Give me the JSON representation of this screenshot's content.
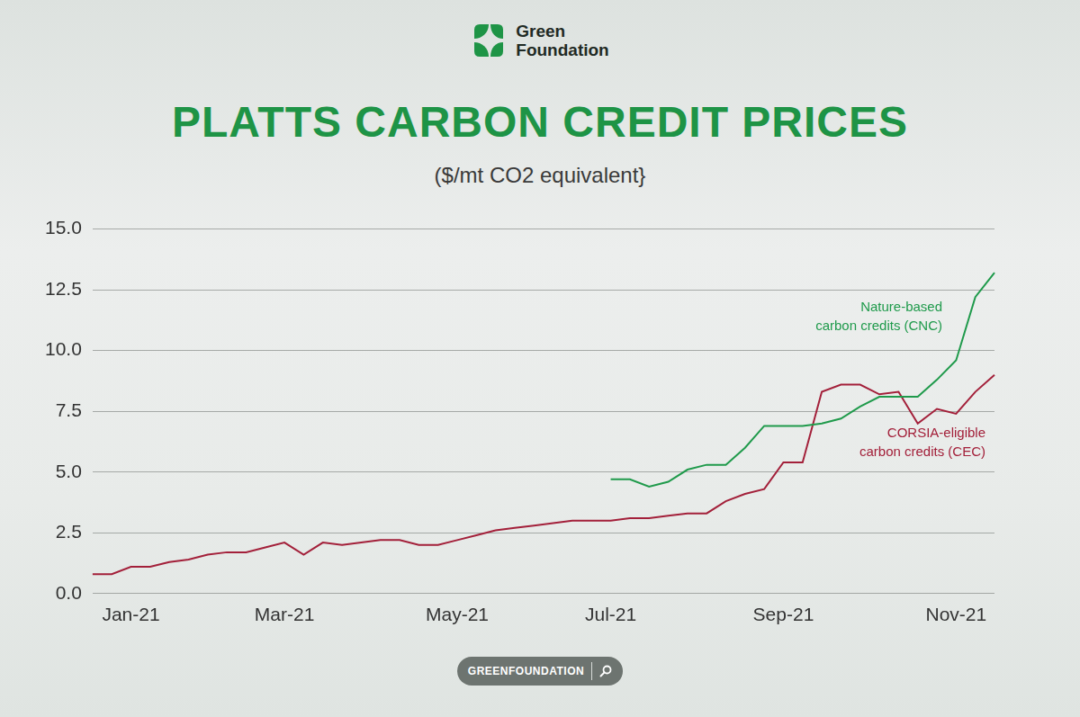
{
  "header": {
    "brand": "Green Foundation"
  },
  "chart_data": {
    "type": "line",
    "title": "PLATTS CARBON CREDIT PRICES",
    "subtitle": "($/mt CO2 equivalent}",
    "categories": [
      null,
      null,
      "Jan-21",
      null,
      null,
      null,
      null,
      null,
      null,
      null,
      "Mar-21",
      null,
      null,
      null,
      null,
      null,
      null,
      null,
      null,
      "May-21",
      null,
      null,
      null,
      null,
      null,
      null,
      null,
      "Jul-21",
      null,
      null,
      null,
      null,
      null,
      null,
      null,
      null,
      "Sep-21",
      null,
      null,
      null,
      null,
      null,
      null,
      null,
      null,
      "Nov-21",
      null,
      null
    ],
    "series": [
      {
        "name": "Nature-based carbon credits (CNC)",
        "color": "#1f9a4b",
        "values": [
          null,
          null,
          null,
          null,
          null,
          null,
          null,
          null,
          null,
          null,
          null,
          null,
          null,
          null,
          null,
          null,
          null,
          null,
          null,
          null,
          null,
          null,
          null,
          null,
          null,
          null,
          null,
          4.7,
          4.7,
          4.4,
          4.6,
          5.1,
          5.3,
          5.3,
          6.0,
          6.9,
          6.9,
          6.9,
          7.0,
          7.2,
          7.7,
          8.1,
          8.1,
          8.1,
          8.8,
          9.6,
          12.2,
          13.2
        ]
      },
      {
        "name": "CORSIA-eligible carbon credits (CEC)",
        "color": "#a3203a",
        "values": [
          0.8,
          0.8,
          1.1,
          1.1,
          1.3,
          1.4,
          1.6,
          1.7,
          1.7,
          1.9,
          2.1,
          1.6,
          2.1,
          2.0,
          2.1,
          2.2,
          2.2,
          2.0,
          2.0,
          2.2,
          2.4,
          2.6,
          2.7,
          2.8,
          2.9,
          3.0,
          3.0,
          3.0,
          3.1,
          3.1,
          3.2,
          3.3,
          3.3,
          3.8,
          4.1,
          4.3,
          5.4,
          5.4,
          8.3,
          8.6,
          8.6,
          8.2,
          8.3,
          7.0,
          7.6,
          7.4,
          8.3,
          9.0
        ]
      }
    ],
    "ylim": [
      0,
      15
    ],
    "yticks": [
      {
        "value": 0,
        "label": "0.0"
      },
      2.5,
      {
        "value": 5,
        "label": "5.0"
      },
      7.5,
      {
        "value": 10,
        "label": "10.0"
      },
      12.5,
      {
        "value": 15,
        "label": "15.0"
      }
    ],
    "grid": true,
    "marker": "none"
  },
  "footer": {
    "badge": "GREENFOUNDATION"
  }
}
